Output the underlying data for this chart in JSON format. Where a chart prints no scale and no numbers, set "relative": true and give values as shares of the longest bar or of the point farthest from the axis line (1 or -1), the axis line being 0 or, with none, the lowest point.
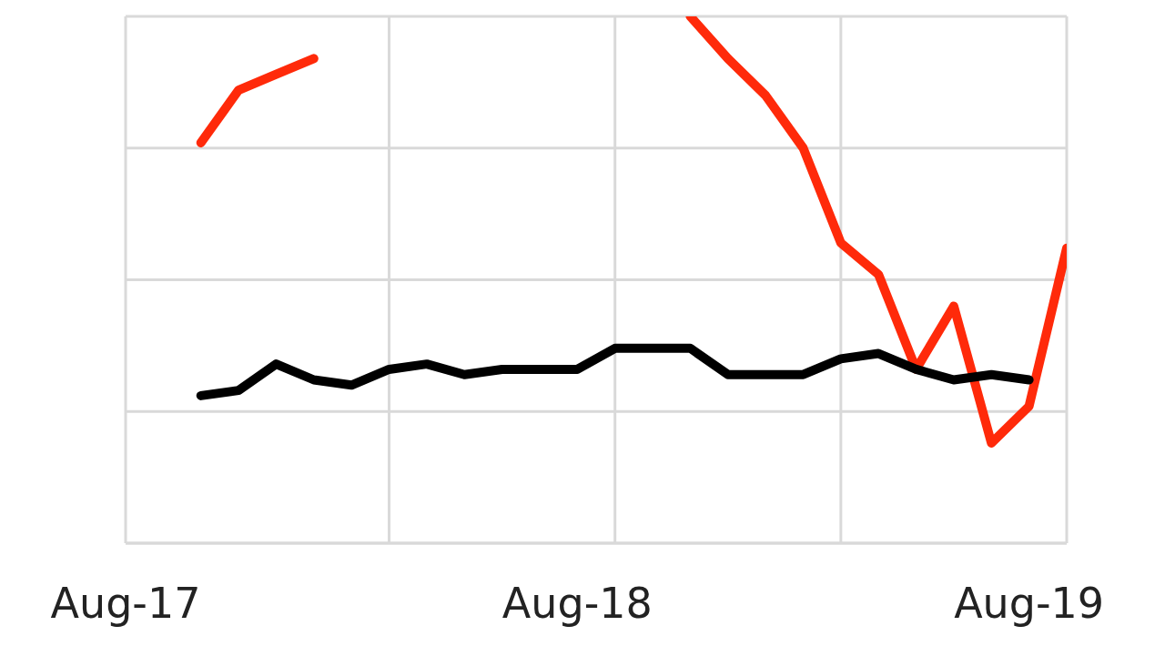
{
  "chart_data": {
    "type": "line",
    "relative": true,
    "x": [
      "2017-10",
      "2017-11",
      "2017-12",
      "2018-01",
      "2018-02",
      "2018-03",
      "2018-04",
      "2018-05",
      "2018-06",
      "2018-07",
      "2018-08",
      "2018-09",
      "2018-10",
      "2018-11",
      "2018-12",
      "2019-01",
      "2019-02",
      "2019-03",
      "2019-04",
      "2019-05",
      "2019-06",
      "2019-07",
      "2019-08",
      "2019-09"
    ],
    "series": [
      {
        "color": "#ff2a0a",
        "values": [
          0.76,
          0.86,
          0.89,
          0.92,
          null,
          null,
          null,
          null,
          null,
          null,
          null,
          null,
          null,
          1,
          0.92,
          0.85,
          0.75,
          0.57,
          0.51,
          0.33,
          0.45,
          0.19,
          0.26,
          0.56
        ]
      },
      {
        "color": "#000000",
        "values": [
          0.28,
          0.29,
          0.34,
          0.31,
          0.3,
          0.33,
          0.34,
          0.32,
          0.33,
          0.33,
          0.33,
          0.37,
          0.37,
          0.37,
          0.32,
          0.32,
          0.32,
          0.35,
          0.36,
          0.33,
          0.31,
          0.32,
          0.31,
          null
        ]
      }
    ],
    "xlim": [
      "2017-08",
      "2019-09"
    ],
    "xticks": [
      {
        "value": "2017-08",
        "label": "Aug-17"
      },
      {
        "value": "2018-03",
        "label": null
      },
      {
        "value": "2018-08",
        "label": "Aug-18"
      },
      {
        "value": "2018-09",
        "label": null
      },
      {
        "value": "2019-03",
        "label": null
      },
      {
        "value": "2019-08",
        "label": "Aug-19"
      },
      {
        "value": "2019-09",
        "label": null
      }
    ],
    "grid": true,
    "legend": false,
    "marker": "none",
    "line_style": "solid"
  }
}
